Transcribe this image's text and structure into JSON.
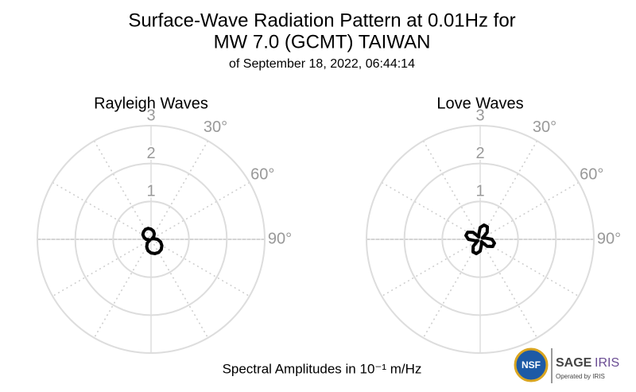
{
  "title": [
    "Surface-Wave Radiation Pattern at 0.01Hz for",
    "MW 7.0 (GCMT) TAIWAN"
  ],
  "subtitle": "of September 18, 2022, 06:44:14",
  "footer": "Spectral Amplitudes in 10⁻¹ m/Hz",
  "logo": {
    "nsf": "NSF",
    "sage": "SAGE",
    "iris": "IRIS",
    "operated": "Operated by IRIS"
  },
  "chart_data": [
    {
      "type": "polar",
      "title": "Rayleigh Waves",
      "color": "#000000",
      "theta": [
        0,
        15,
        30,
        45,
        60,
        75,
        90,
        105,
        120,
        135,
        150,
        165,
        180,
        195,
        210,
        225,
        240,
        255,
        270,
        285,
        300,
        315,
        330,
        345
      ],
      "r": [
        0.27,
        0.23,
        0.17,
        0.1,
        0.03,
        0.07,
        0.17,
        0.26,
        0.33,
        0.38,
        0.4,
        0.39,
        0.36,
        0.31,
        0.23,
        0.14,
        0.03,
        0.05,
        0.13,
        0.19,
        0.25,
        0.28,
        0.3,
        0.3
      ],
      "rlim": [
        0,
        3
      ],
      "rticks": [
        1,
        2,
        3
      ],
      "thetaticks": [
        {
          "value": 30,
          "label": "30°"
        },
        {
          "value": 60,
          "label": "60°"
        },
        {
          "value": 90,
          "label": "90°"
        }
      ]
    },
    {
      "type": "polar",
      "title": "Love Waves",
      "color": "#000000",
      "theta": [
        0,
        15,
        30,
        45,
        60,
        75,
        90,
        105,
        120,
        135,
        150,
        165,
        180,
        195,
        210,
        225,
        240,
        255,
        270,
        285,
        300,
        315,
        330,
        345
      ],
      "r": [
        0.31,
        0.39,
        0.38,
        0.26,
        0.07,
        0.14,
        0.31,
        0.39,
        0.38,
        0.26,
        0.07,
        0.14,
        0.31,
        0.39,
        0.38,
        0.26,
        0.07,
        0.14,
        0.31,
        0.39,
        0.38,
        0.26,
        0.07,
        0.14
      ],
      "rlim": [
        0,
        3
      ],
      "rticks": [
        1,
        2,
        3
      ],
      "thetaticks": [
        {
          "value": 30,
          "label": "30°"
        },
        {
          "value": 60,
          "label": "60°"
        },
        {
          "value": 90,
          "label": "90°"
        }
      ]
    }
  ]
}
